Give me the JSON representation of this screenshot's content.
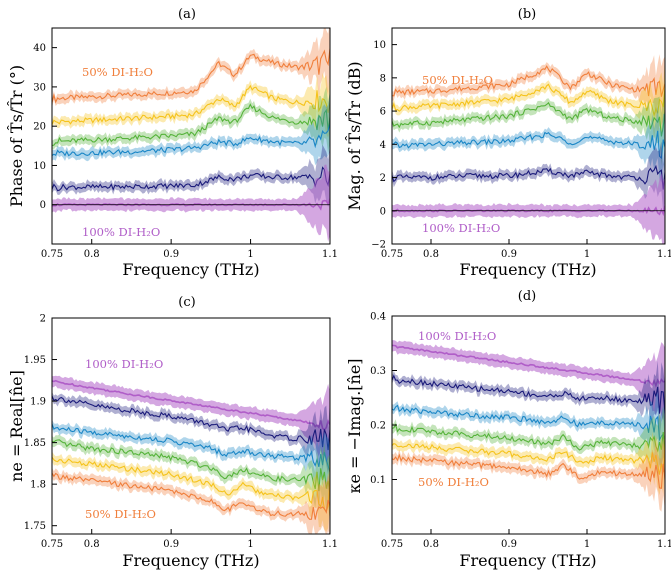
{
  "chart_data": [
    {
      "type": "line",
      "panel_label": "(a)",
      "xlabel": "Frequency (THz)",
      "ylabel": "Phase of T̂s/T̂r (°)",
      "xlim": [
        0.75,
        1.1
      ],
      "ylim": [
        -10,
        45
      ],
      "xticks": [
        "0.75",
        "0.8",
        "0.9",
        "1",
        "1.1"
      ],
      "yticks": [
        "0",
        "10",
        "20",
        "30",
        "40"
      ],
      "annotations": [
        {
          "text": "50% DI-H₂O",
          "color": "#f07f3c"
        },
        {
          "text": "100% DI-H₂O",
          "color": "#b05ec8"
        }
      ],
      "series": [
        {
          "color": "#f07f3c",
          "x": [
            0.75,
            0.8,
            0.85,
            0.9,
            0.93,
            0.96,
            0.98,
            1.0,
            1.03,
            1.06,
            1.1
          ],
          "y": [
            27,
            27.5,
            28,
            28.5,
            29,
            36,
            33,
            38,
            36,
            35,
            36
          ]
        },
        {
          "color": "#f5c31c",
          "x": [
            0.75,
            0.8,
            0.85,
            0.9,
            0.93,
            0.96,
            0.98,
            1.0,
            1.03,
            1.06,
            1.1
          ],
          "y": [
            21,
            21.5,
            22,
            22.5,
            23,
            27,
            25,
            30,
            27,
            26,
            27
          ]
        },
        {
          "color": "#55b33a",
          "x": [
            0.75,
            0.8,
            0.85,
            0.9,
            0.93,
            0.96,
            0.98,
            1.0,
            1.03,
            1.06,
            1.1
          ],
          "y": [
            16,
            16.5,
            17,
            17.5,
            18,
            22,
            21,
            25,
            22,
            21,
            22
          ]
        },
        {
          "color": "#1a86c6",
          "x": [
            0.75,
            0.8,
            0.85,
            0.9,
            0.93,
            0.96,
            0.98,
            1.0,
            1.03,
            1.06,
            1.1
          ],
          "y": [
            13,
            13.2,
            13.5,
            14,
            14.5,
            16,
            15.5,
            17,
            16,
            15.5,
            16
          ]
        },
        {
          "color": "#1a1a7a",
          "x": [
            0.75,
            0.8,
            0.85,
            0.9,
            0.93,
            0.96,
            0.98,
            1.0,
            1.03,
            1.06,
            1.1
          ],
          "y": [
            4.5,
            4.5,
            4.6,
            4.8,
            5,
            7,
            6.5,
            7.5,
            7,
            7,
            7
          ]
        },
        {
          "color": "#b05ec8",
          "x": [
            0.75,
            0.8,
            0.85,
            0.9,
            0.93,
            0.96,
            0.98,
            1.0,
            1.03,
            1.06,
            1.1
          ],
          "y": [
            0,
            0,
            0,
            0,
            0,
            0,
            0,
            0,
            0,
            0,
            0
          ]
        }
      ]
    },
    {
      "type": "line",
      "panel_label": "(b)",
      "xlabel": "Frequency (THz)",
      "ylabel": "Mag. of T̂s/T̂r (dB)",
      "xlim": [
        0.75,
        1.1
      ],
      "ylim": [
        -2,
        11
      ],
      "xticks": [
        "0.75",
        "0.8",
        "0.9",
        "1",
        "1.1"
      ],
      "yticks": [
        "−2",
        "0",
        "2",
        "4",
        "6",
        "8",
        "10"
      ],
      "annotations": [
        {
          "text": "50% DI-H₂O",
          "color": "#f07f3c"
        },
        {
          "text": "100% DI-H₂O",
          "color": "#b05ec8"
        }
      ],
      "series": [
        {
          "color": "#f07f3c",
          "x": [
            0.75,
            0.8,
            0.85,
            0.9,
            0.95,
            0.98,
            1.0,
            1.03,
            1.06,
            1.1
          ],
          "y": [
            7.1,
            7.2,
            7.4,
            7.6,
            8.6,
            7.4,
            8.3,
            7.6,
            7.3,
            7.4
          ]
        },
        {
          "color": "#f5c31c",
          "x": [
            0.75,
            0.8,
            0.85,
            0.9,
            0.95,
            0.98,
            1.0,
            1.03,
            1.06,
            1.1
          ],
          "y": [
            6.2,
            6.3,
            6.5,
            6.7,
            7.5,
            6.5,
            7.2,
            6.6,
            6.3,
            6.4
          ]
        },
        {
          "color": "#55b33a",
          "x": [
            0.75,
            0.8,
            0.85,
            0.9,
            0.95,
            0.98,
            1.0,
            1.03,
            1.06,
            1.1
          ],
          "y": [
            5.2,
            5.3,
            5.5,
            5.7,
            6.4,
            5.5,
            6.1,
            5.6,
            5.4,
            5.4
          ]
        },
        {
          "color": "#1a86c6",
          "x": [
            0.75,
            0.8,
            0.85,
            0.9,
            0.95,
            0.98,
            1.0,
            1.03,
            1.06,
            1.1
          ],
          "y": [
            3.9,
            4.0,
            4.1,
            4.2,
            4.6,
            4.1,
            4.4,
            4.2,
            4.0,
            4.0
          ]
        },
        {
          "color": "#1a1a7a",
          "x": [
            0.75,
            0.8,
            0.85,
            0.9,
            0.95,
            0.98,
            1.0,
            1.03,
            1.06,
            1.1
          ],
          "y": [
            2.0,
            2.0,
            2.1,
            2.1,
            2.4,
            2.1,
            2.3,
            2.1,
            2.0,
            2.0
          ]
        },
        {
          "color": "#b05ec8",
          "x": [
            0.75,
            0.8,
            0.85,
            0.9,
            0.95,
            0.98,
            1.0,
            1.03,
            1.06,
            1.1
          ],
          "y": [
            0,
            0,
            0,
            0,
            0,
            0,
            0,
            0,
            0,
            0
          ]
        }
      ]
    },
    {
      "type": "line",
      "panel_label": "(c)",
      "xlabel": "Frequency (THz)",
      "ylabel": "ne = Real[n̂e]",
      "xlim": [
        0.75,
        1.1
      ],
      "ylim": [
        1.74,
        2.0
      ],
      "xticks": [
        "0.75",
        "0.8",
        "0.9",
        "1",
        "1.1"
      ],
      "yticks": [
        "1.75",
        "1.8",
        "1.85",
        "1.9",
        "1.95",
        "2"
      ],
      "annotations": [
        {
          "text": "100% DI-H₂O",
          "color": "#b05ec8"
        },
        {
          "text": "50% DI-H₂O",
          "color": "#f07f3c"
        }
      ],
      "series": [
        {
          "color": "#b05ec8",
          "x": [
            0.75,
            0.85,
            0.95,
            1.05,
            1.1
          ],
          "y": [
            1.924,
            1.908,
            1.893,
            1.878,
            1.87
          ]
        },
        {
          "color": "#1a1a7a",
          "x": [
            0.75,
            0.8,
            0.85,
            0.9,
            0.95,
            0.97,
            0.99,
            1.02,
            1.05,
            1.1
          ],
          "y": [
            1.905,
            1.895,
            1.888,
            1.882,
            1.872,
            1.865,
            1.868,
            1.86,
            1.855,
            1.855
          ]
        },
        {
          "color": "#1a86c6",
          "x": [
            0.75,
            0.8,
            0.85,
            0.9,
            0.95,
            0.97,
            0.99,
            1.02,
            1.05,
            1.1
          ],
          "y": [
            1.868,
            1.862,
            1.857,
            1.852,
            1.843,
            1.835,
            1.84,
            1.835,
            1.832,
            1.833
          ]
        },
        {
          "color": "#55b33a",
          "x": [
            0.75,
            0.8,
            0.85,
            0.9,
            0.95,
            0.97,
            0.99,
            1.02,
            1.05,
            1.1
          ],
          "y": [
            1.85,
            1.843,
            1.838,
            1.832,
            1.82,
            1.808,
            1.818,
            1.808,
            1.805,
            1.806
          ]
        },
        {
          "color": "#f5c31c",
          "x": [
            0.75,
            0.8,
            0.85,
            0.9,
            0.95,
            0.97,
            0.99,
            1.02,
            1.05,
            1.1
          ],
          "y": [
            1.83,
            1.824,
            1.818,
            1.812,
            1.8,
            1.788,
            1.799,
            1.787,
            1.784,
            1.785
          ]
        },
        {
          "color": "#f07f3c",
          "x": [
            0.75,
            0.8,
            0.85,
            0.9,
            0.95,
            0.97,
            0.99,
            1.02,
            1.05,
            1.1
          ],
          "y": [
            1.81,
            1.804,
            1.798,
            1.792,
            1.78,
            1.768,
            1.779,
            1.765,
            1.764,
            1.765
          ]
        }
      ]
    },
    {
      "type": "line",
      "panel_label": "(d)",
      "xlabel": "Frequency (THz)",
      "ylabel": "κe = −Imag.[n̂e]",
      "xlim": [
        0.75,
        1.1
      ],
      "ylim": [
        0,
        0.4
      ],
      "xticks": [
        "0.75",
        "0.8",
        "0.9",
        "1",
        "1.1"
      ],
      "yticks": [
        "0.1",
        "0.2",
        "0.3",
        "0.4"
      ],
      "annotations": [
        {
          "text": "100% DI-H₂O",
          "color": "#b05ec8"
        },
        {
          "text": "50% DI-H₂O",
          "color": "#f07f3c"
        }
      ],
      "series": [
        {
          "color": "#b05ec8",
          "x": [
            0.75,
            0.85,
            0.95,
            1.05,
            1.1
          ],
          "y": [
            0.345,
            0.325,
            0.305,
            0.285,
            0.275
          ]
        },
        {
          "color": "#1a1a7a",
          "x": [
            0.75,
            0.8,
            0.85,
            0.9,
            0.95,
            0.97,
            0.99,
            1.02,
            1.05,
            1.1
          ],
          "y": [
            0.285,
            0.276,
            0.268,
            0.262,
            0.252,
            0.258,
            0.248,
            0.25,
            0.245,
            0.245
          ]
        },
        {
          "color": "#1a86c6",
          "x": [
            0.75,
            0.8,
            0.85,
            0.9,
            0.95,
            0.97,
            0.99,
            1.02,
            1.05,
            1.1
          ],
          "y": [
            0.23,
            0.224,
            0.218,
            0.214,
            0.205,
            0.213,
            0.2,
            0.205,
            0.201,
            0.2
          ]
        },
        {
          "color": "#55b33a",
          "x": [
            0.75,
            0.8,
            0.85,
            0.9,
            0.95,
            0.97,
            0.99,
            1.02,
            1.05,
            1.1
          ],
          "y": [
            0.195,
            0.188,
            0.182,
            0.176,
            0.165,
            0.178,
            0.158,
            0.168,
            0.163,
            0.162
          ]
        },
        {
          "color": "#f5c31c",
          "x": [
            0.75,
            0.8,
            0.85,
            0.9,
            0.95,
            0.97,
            0.99,
            1.02,
            1.05,
            1.1
          ],
          "y": [
            0.165,
            0.159,
            0.153,
            0.147,
            0.136,
            0.152,
            0.13,
            0.14,
            0.135,
            0.134
          ]
        },
        {
          "color": "#f07f3c",
          "x": [
            0.75,
            0.8,
            0.85,
            0.9,
            0.95,
            0.97,
            0.99,
            1.02,
            1.05,
            1.1
          ],
          "y": [
            0.14,
            0.134,
            0.128,
            0.122,
            0.11,
            0.126,
            0.104,
            0.114,
            0.11,
            0.109
          ]
        }
      ]
    }
  ]
}
